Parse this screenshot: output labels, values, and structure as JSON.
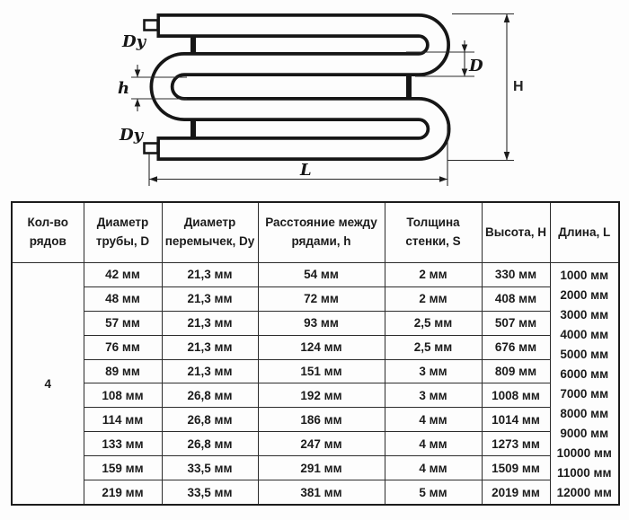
{
  "diagram": {
    "labels": {
      "dy_top": "Dy",
      "dy_bottom": "Dy",
      "row_gap": "h",
      "pipe_diameter": "D",
      "height": "H",
      "length": "L"
    },
    "line_color": "#161616"
  },
  "table": {
    "headers": [
      "Кол-во\nрядов",
      "Диаметр\nтрубы, D",
      "Диаметр\nперемычек, Dy",
      "Расстояние между\nрядами, h",
      "Толщина\nстенки, S",
      "Высота, H",
      "Длина, L"
    ],
    "rows_count_value": "4",
    "rows": [
      {
        "d": "42 мм",
        "dy": "21,3 мм",
        "h": "54 мм",
        "s": "2 мм",
        "height": "330 мм"
      },
      {
        "d": "48 мм",
        "dy": "21,3 мм",
        "h": "72 мм",
        "s": "2 мм",
        "height": "408 мм"
      },
      {
        "d": "57 мм",
        "dy": "21,3 мм",
        "h": "93 мм",
        "s": "2,5 мм",
        "height": "507 мм"
      },
      {
        "d": "76 мм",
        "dy": "21,3 мм",
        "h": "124 мм",
        "s": "2,5 мм",
        "height": "676 мм"
      },
      {
        "d": "89 мм",
        "dy": "21,3 мм",
        "h": "151 мм",
        "s": "3 мм",
        "height": "809 мм"
      },
      {
        "d": "108 мм",
        "dy": "26,8 мм",
        "h": "192 мм",
        "s": "3 мм",
        "height": "1008 мм"
      },
      {
        "d": "114 мм",
        "dy": "26,8 мм",
        "h": "186 мм",
        "s": "4 мм",
        "height": "1014 мм"
      },
      {
        "d": "133 мм",
        "dy": "26,8 мм",
        "h": "247 мм",
        "s": "4 мм",
        "height": "1273 мм"
      },
      {
        "d": "159 мм",
        "dy": "33,5 мм",
        "h": "291 мм",
        "s": "4 мм",
        "height": "1509 мм"
      },
      {
        "d": "219 мм",
        "dy": "33,5 мм",
        "h": "381 мм",
        "s": "5 мм",
        "height": "2019 мм"
      }
    ],
    "lengths": [
      "1000 мм",
      "2000 мм",
      "3000 мм",
      "4000 мм",
      "5000 мм",
      "6000 мм",
      "7000 мм",
      "8000 мм",
      "9000 мм",
      "10000 мм",
      "11000 мм",
      "12000 мм"
    ]
  }
}
